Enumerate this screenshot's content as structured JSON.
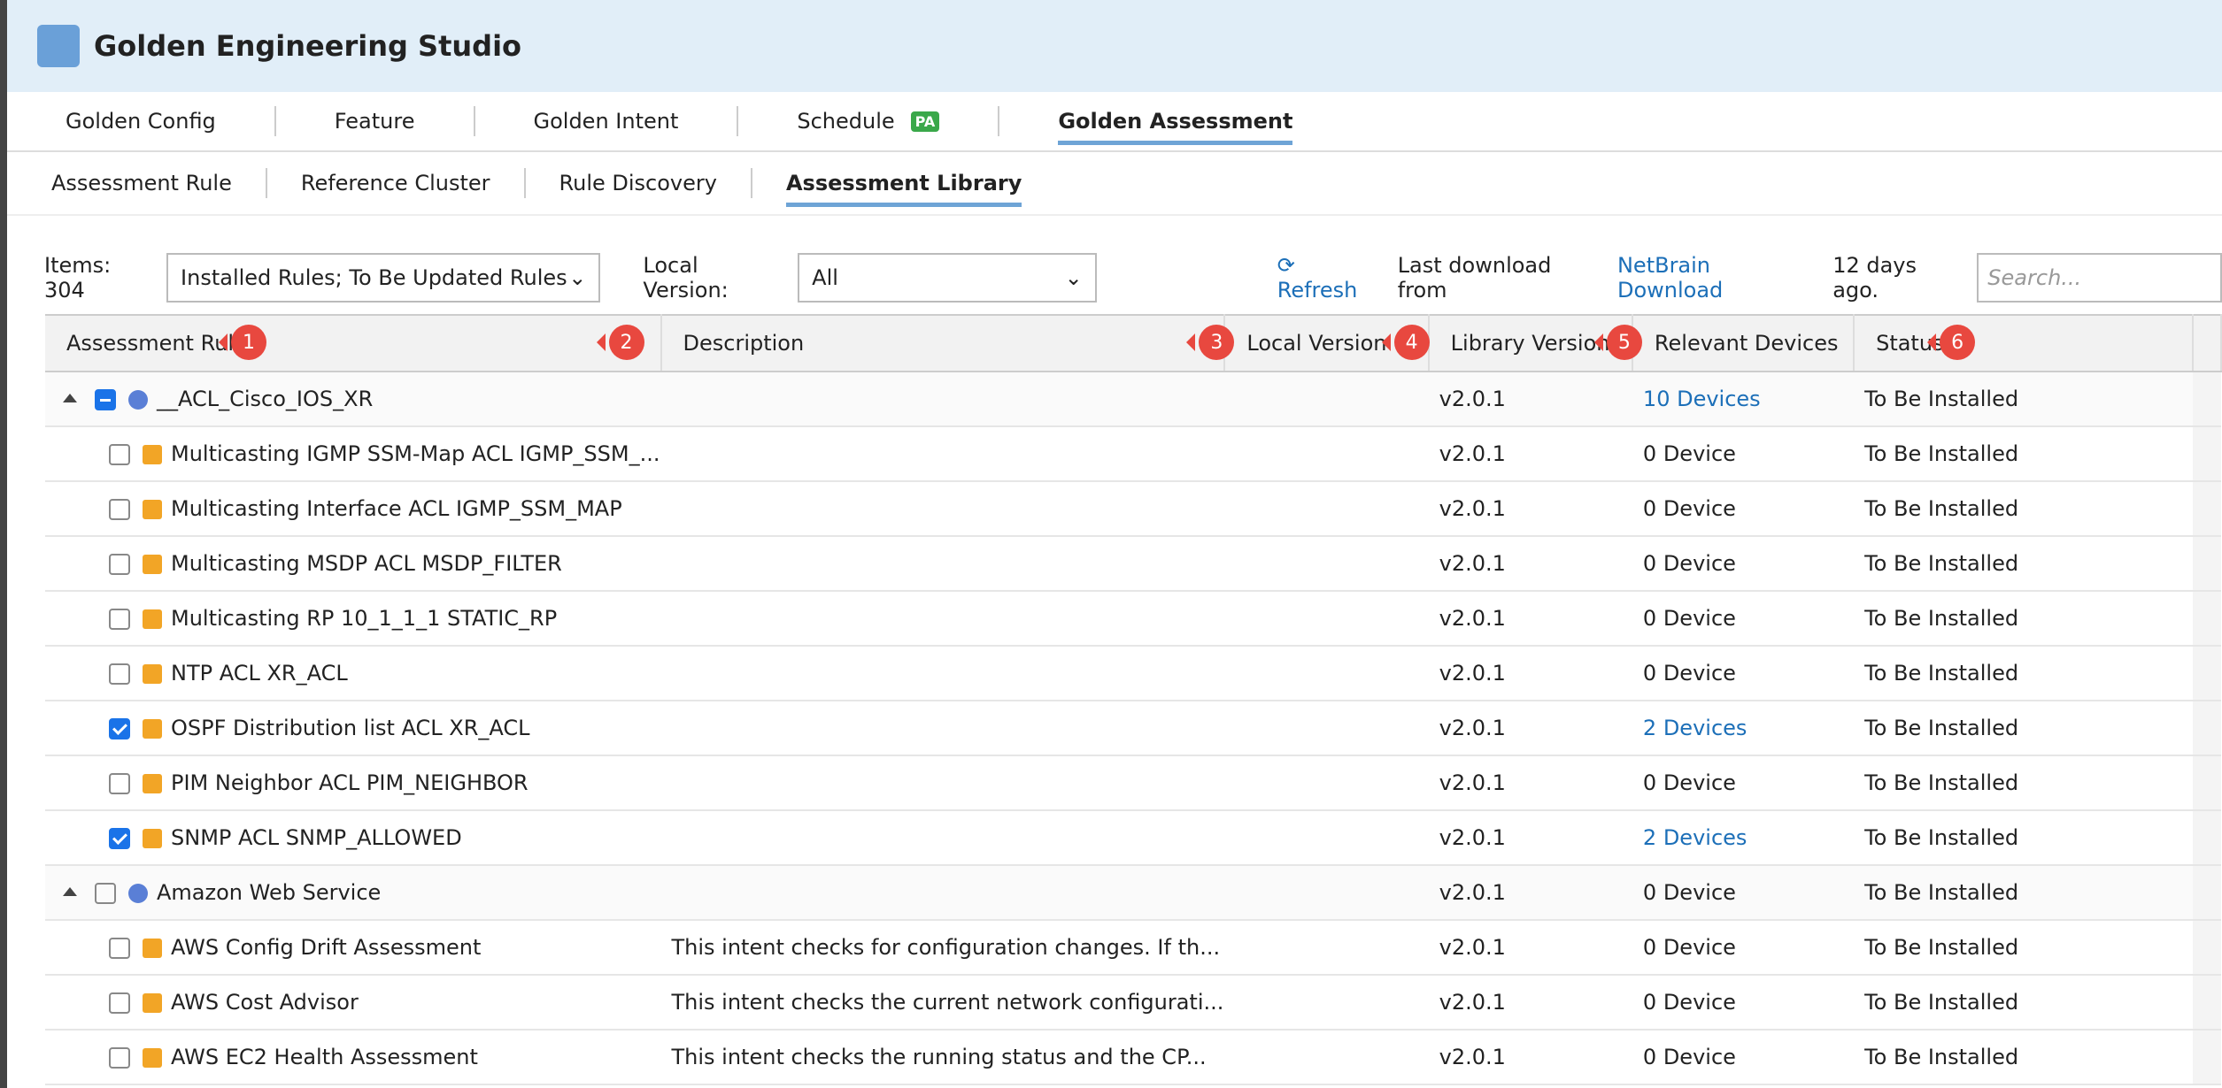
{
  "app": {
    "title": "Golden Engineering Studio",
    "tabs": [
      "Golden Config",
      "Feature",
      "Golden Intent",
      "Schedule",
      "Golden Assessment"
    ],
    "badge": "PA",
    "subtabs": [
      "Assessment Rule",
      "Reference Cluster",
      "Rule Discovery",
      "Assessment Library"
    ]
  },
  "toolbar": {
    "items": "Items: 304",
    "filter": "Installed Rules; To Be Updated Rules",
    "local_version_label": "Local Version:",
    "local_version": "All",
    "refresh": "Refresh",
    "last_download": "Last download from",
    "link": "NetBrain Download",
    "ago": "12 days ago.",
    "search": "Search..."
  },
  "table": {
    "columns": [
      {
        "name": "Assessment Rules",
        "callout": "1"
      },
      {
        "name": "Description",
        "callout": "2"
      },
      {
        "name": "Local Version",
        "callout": "3"
      },
      {
        "name": "Library Version",
        "callout": "4"
      },
      {
        "name": "Relevant Devices",
        "callout": "5"
      },
      {
        "name": "Status",
        "callout": "6"
      }
    ],
    "rows": [
      {
        "group": true,
        "check": "partial",
        "name": "__ACL_Cisco_IOS_XR",
        "library": "v2.0.1",
        "devices": "10 Devices",
        "link": true,
        "status": "To Be Installed"
      },
      {
        "check": "off",
        "name": "Multicasting IGMP SSM-Map ACL IGMP_SSM_...",
        "library": "v2.0.1",
        "devices": "0 Device",
        "status": "To Be Installed"
      },
      {
        "check": "off",
        "name": "Multicasting Interface ACL IGMP_SSM_MAP",
        "library": "v2.0.1",
        "devices": "0 Device",
        "status": "To Be Installed"
      },
      {
        "check": "off",
        "name": "Multicasting MSDP ACL MSDP_FILTER",
        "library": "v2.0.1",
        "devices": "0 Device",
        "status": "To Be Installed"
      },
      {
        "check": "off",
        "name": "Multicasting RP 10_1_1_1 STATIC_RP",
        "library": "v2.0.1",
        "devices": "0 Device",
        "status": "To Be Installed"
      },
      {
        "check": "off",
        "name": "NTP ACL XR_ACL",
        "library": "v2.0.1",
        "devices": "0 Device",
        "status": "To Be Installed"
      },
      {
        "check": "on",
        "name": "OSPF Distribution list ACL XR_ACL",
        "library": "v2.0.1",
        "devices": "2 Devices",
        "link": true,
        "status": "To Be Installed"
      },
      {
        "check": "off",
        "name": "PIM Neighbor ACL PIM_NEIGHBOR",
        "library": "v2.0.1",
        "devices": "0 Device",
        "status": "To Be Installed"
      },
      {
        "check": "on",
        "name": "SNMP ACL SNMP_ALLOWED",
        "library": "v2.0.1",
        "devices": "2 Devices",
        "link": true,
        "status": "To Be Installed"
      },
      {
        "group": true,
        "check": "off",
        "name": "Amazon Web Service",
        "library": "v2.0.1",
        "devices": "0 Device",
        "status": "To Be Installed"
      },
      {
        "check": "off",
        "name": "AWS Config Drift Assessment",
        "description": "This intent checks for configuration changes. If th...",
        "library": "v2.0.1",
        "devices": "0 Device",
        "status": "To Be Installed"
      },
      {
        "check": "off",
        "name": "AWS Cost Advisor",
        "description": "This intent checks the current network configurati...",
        "library": "v2.0.1",
        "devices": "0 Device",
        "status": "To Be Installed"
      },
      {
        "check": "off",
        "name": "AWS EC2 Health Assessment",
        "description": "This intent checks the running status and the CP...",
        "library": "v2.0.1",
        "devices": "0 Device",
        "status": "To Be Installed"
      }
    ]
  }
}
